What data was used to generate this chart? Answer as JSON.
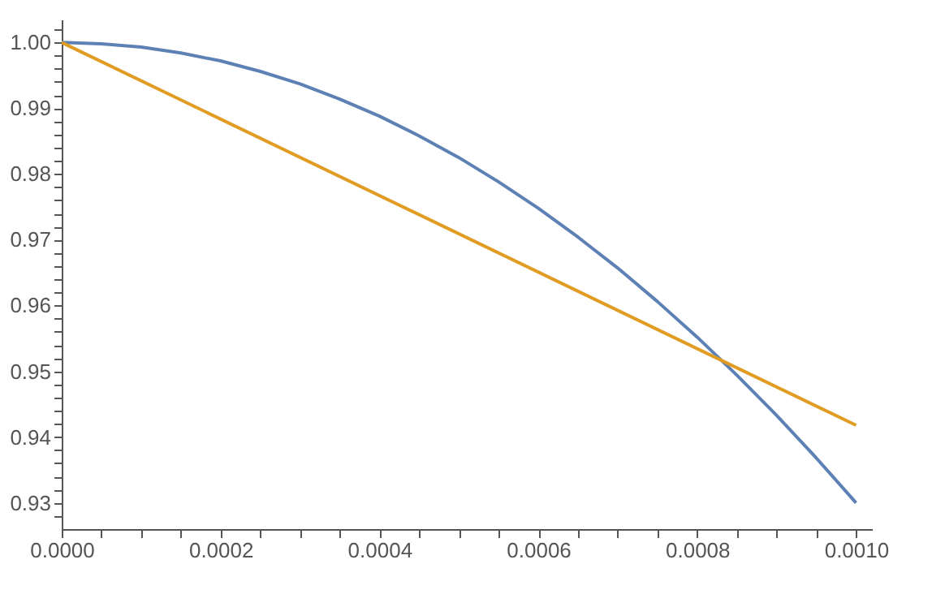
{
  "chart_data": {
    "type": "line",
    "x": [
      0,
      5e-05,
      0.0001,
      0.00015,
      0.0002,
      0.00025,
      0.0003,
      0.00035,
      0.0004,
      0.00045,
      0.0005,
      0.00055,
      0.0006,
      0.00065,
      0.0007,
      0.00075,
      0.0008,
      0.00085,
      0.0009,
      0.00095,
      0.001
    ],
    "series": [
      {
        "color": "#5e81b5",
        "values": [
          1.0,
          0.9998,
          0.9993,
          0.9984,
          0.9972,
          0.9956,
          0.9937,
          0.9914,
          0.9888,
          0.9858,
          0.9825,
          0.9788,
          0.9748,
          0.9704,
          0.9657,
          0.9606,
          0.9552,
          0.9494,
          0.9433,
          0.9368,
          0.93
        ]
      },
      {
        "color": "#e19c24",
        "x": [
          0,
          0.001
        ],
        "values": [
          1.0,
          0.9418
        ]
      }
    ],
    "marker": "none",
    "line_style": "solid",
    "xlim": [
      0,
      0.00102
    ],
    "ylim": [
      0.926,
      1.0035
    ],
    "xticks": [
      {
        "value": 0,
        "label": "0.0000"
      },
      {
        "value": 5e-05,
        "label": null
      },
      {
        "value": 0.0001,
        "label": null
      },
      {
        "value": 0.00015,
        "label": null
      },
      {
        "value": 0.0002,
        "label": "0.0002"
      },
      {
        "value": 0.00025,
        "label": null
      },
      {
        "value": 0.0003,
        "label": null
      },
      {
        "value": 0.00035,
        "label": null
      },
      {
        "value": 0.0004,
        "label": "0.0004"
      },
      {
        "value": 0.00045,
        "label": null
      },
      {
        "value": 0.0005,
        "label": null
      },
      {
        "value": 0.00055,
        "label": null
      },
      {
        "value": 0.0006,
        "label": "0.0006"
      },
      {
        "value": 0.00065,
        "label": null
      },
      {
        "value": 0.0007,
        "label": null
      },
      {
        "value": 0.00075,
        "label": null
      },
      {
        "value": 0.0008,
        "label": "0.0008"
      },
      {
        "value": 0.00085,
        "label": null
      },
      {
        "value": 0.0009,
        "label": null
      },
      {
        "value": 0.00095,
        "label": null
      },
      {
        "value": 0.001,
        "label": "0.0010"
      }
    ],
    "yticks": [
      {
        "value": 0.928,
        "label": null
      },
      {
        "value": 0.93,
        "label": "0.93"
      },
      {
        "value": 0.932,
        "label": null
      },
      {
        "value": 0.934,
        "label": null
      },
      {
        "value": 0.936,
        "label": null
      },
      {
        "value": 0.938,
        "label": null
      },
      {
        "value": 0.94,
        "label": "0.94"
      },
      {
        "value": 0.942,
        "label": null
      },
      {
        "value": 0.944,
        "label": null
      },
      {
        "value": 0.946,
        "label": null
      },
      {
        "value": 0.948,
        "label": null
      },
      {
        "value": 0.95,
        "label": "0.95"
      },
      {
        "value": 0.952,
        "label": null
      },
      {
        "value": 0.954,
        "label": null
      },
      {
        "value": 0.956,
        "label": null
      },
      {
        "value": 0.958,
        "label": null
      },
      {
        "value": 0.96,
        "label": "0.96"
      },
      {
        "value": 0.962,
        "label": null
      },
      {
        "value": 0.964,
        "label": null
      },
      {
        "value": 0.966,
        "label": null
      },
      {
        "value": 0.968,
        "label": null
      },
      {
        "value": 0.97,
        "label": "0.97"
      },
      {
        "value": 0.972,
        "label": null
      },
      {
        "value": 0.974,
        "label": null
      },
      {
        "value": 0.976,
        "label": null
      },
      {
        "value": 0.978,
        "label": null
      },
      {
        "value": 0.98,
        "label": "0.98"
      },
      {
        "value": 0.982,
        "label": null
      },
      {
        "value": 0.984,
        "label": null
      },
      {
        "value": 0.986,
        "label": null
      },
      {
        "value": 0.988,
        "label": null
      },
      {
        "value": 0.99,
        "label": "0.99"
      },
      {
        "value": 0.992,
        "label": null
      },
      {
        "value": 0.994,
        "label": null
      },
      {
        "value": 0.996,
        "label": null
      },
      {
        "value": 0.998,
        "label": null
      },
      {
        "value": 1.0,
        "label": "1.00"
      },
      {
        "value": 1.002,
        "label": null
      }
    ]
  }
}
